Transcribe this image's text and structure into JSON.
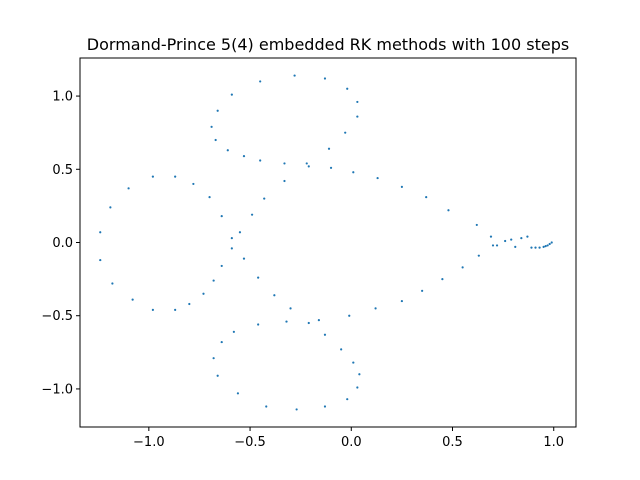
{
  "chart_data": {
    "type": "scatter",
    "title": "Dormand-Prince 5(4) embedded RK methods with 100 steps",
    "xlabel": "",
    "ylabel": "",
    "xlim": [
      -1.34,
      1.11
    ],
    "ylim": [
      -1.26,
      1.26
    ],
    "x_ticks": [
      -1.0,
      -0.5,
      0.0,
      0.5,
      1.0
    ],
    "x_tick_labels": [
      "−1.0",
      "−0.5",
      "0.0",
      "0.5",
      "1.0"
    ],
    "y_ticks": [
      -1.0,
      -0.5,
      0.0,
      0.5,
      1.0
    ],
    "y_tick_labels": [
      "−1.0",
      "−0.5",
      "0.0",
      "0.5",
      "1.0"
    ],
    "grid": false,
    "marker_color": "#1f77b4",
    "series": [
      {
        "points": [
          [
            0.99,
            0.0
          ],
          [
            0.98,
            -0.01
          ],
          [
            0.97,
            -0.02
          ],
          [
            0.96,
            -0.025
          ],
          [
            0.95,
            -0.03
          ],
          [
            0.93,
            -0.035
          ],
          [
            0.91,
            -0.035
          ],
          [
            0.89,
            -0.035
          ],
          [
            0.87,
            0.04
          ],
          [
            0.84,
            0.03
          ],
          [
            0.81,
            -0.03
          ],
          [
            0.79,
            0.02
          ],
          [
            0.76,
            0.01
          ],
          [
            0.72,
            -0.02
          ],
          [
            0.69,
            0.04
          ],
          [
            0.62,
            0.12
          ],
          [
            0.48,
            0.22
          ],
          [
            0.37,
            0.31
          ],
          [
            0.25,
            0.38
          ],
          [
            0.13,
            0.44
          ],
          [
            0.01,
            0.48
          ],
          [
            -0.1,
            0.51
          ],
          [
            -0.21,
            0.52
          ],
          [
            -0.22,
            0.54
          ],
          [
            -0.33,
            0.54
          ],
          [
            -0.45,
            0.56
          ],
          [
            -0.53,
            0.59
          ],
          [
            -0.61,
            0.63
          ],
          [
            -0.67,
            0.7
          ],
          [
            -0.69,
            0.79
          ],
          [
            -0.66,
            0.9
          ],
          [
            -0.59,
            1.01
          ],
          [
            -0.45,
            1.1
          ],
          [
            -0.28,
            1.14
          ],
          [
            -0.13,
            1.12
          ],
          [
            -0.02,
            1.05
          ],
          [
            0.03,
            0.96
          ],
          [
            0.03,
            0.86
          ],
          [
            -0.03,
            0.75
          ],
          [
            -0.11,
            0.64
          ],
          [
            -0.33,
            0.42
          ],
          [
            -0.43,
            0.3
          ],
          [
            -0.49,
            0.19
          ],
          [
            -0.55,
            0.07
          ],
          [
            -0.59,
            -0.04
          ],
          [
            -0.64,
            -0.16
          ],
          [
            -0.68,
            -0.26
          ],
          [
            -0.73,
            -0.35
          ],
          [
            -0.8,
            -0.42
          ],
          [
            -0.87,
            -0.46
          ],
          [
            -0.98,
            -0.46
          ],
          [
            -1.08,
            -0.39
          ],
          [
            -1.18,
            -0.28
          ],
          [
            -1.24,
            -0.12
          ],
          [
            -1.24,
            0.07
          ],
          [
            -1.19,
            0.24
          ],
          [
            -1.1,
            0.37
          ],
          [
            -0.98,
            0.45
          ],
          [
            -0.87,
            0.45
          ],
          [
            -0.78,
            0.4
          ],
          [
            -0.7,
            0.31
          ],
          [
            -0.64,
            0.18
          ],
          [
            -0.59,
            0.03
          ],
          [
            -0.53,
            -0.11
          ],
          [
            -0.46,
            -0.24
          ],
          [
            -0.38,
            -0.36
          ],
          [
            -0.3,
            -0.45
          ],
          [
            -0.21,
            -0.55
          ],
          [
            -0.16,
            -0.53
          ],
          [
            -0.32,
            -0.54
          ],
          [
            -0.46,
            -0.56
          ],
          [
            -0.58,
            -0.61
          ],
          [
            -0.64,
            -0.68
          ],
          [
            -0.68,
            -0.79
          ],
          [
            -0.66,
            -0.91
          ],
          [
            -0.56,
            -1.03
          ],
          [
            -0.42,
            -1.12
          ],
          [
            -0.27,
            -1.14
          ],
          [
            -0.13,
            -1.12
          ],
          [
            -0.02,
            -1.07
          ],
          [
            0.03,
            -0.99
          ],
          [
            0.04,
            -0.9
          ],
          [
            0.01,
            -0.82
          ],
          [
            -0.05,
            -0.73
          ],
          [
            -0.13,
            -0.63
          ],
          [
            -0.01,
            -0.5
          ],
          [
            0.12,
            -0.45
          ],
          [
            0.25,
            -0.4
          ],
          [
            0.35,
            -0.33
          ],
          [
            0.45,
            -0.25
          ],
          [
            0.55,
            -0.17
          ],
          [
            0.63,
            -0.09
          ],
          [
            0.7,
            -0.02
          ]
        ]
      }
    ]
  }
}
